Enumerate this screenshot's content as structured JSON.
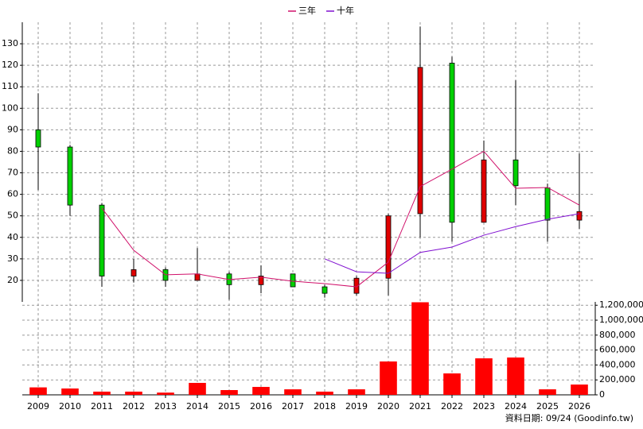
{
  "chart_data": {
    "type": "candlestick",
    "categories": [
      "2009",
      "2010",
      "2011",
      "2012",
      "2013",
      "2014",
      "2015",
      "2016",
      "2017",
      "2018",
      "2019",
      "2020",
      "2021",
      "2022",
      "2023",
      "2024",
      "2025",
      "2026"
    ],
    "open": [
      90,
      82,
      55,
      22,
      25,
      20,
      23,
      18,
      23,
      17,
      14,
      21,
      51,
      121,
      47,
      76,
      63,
      48
    ],
    "high": [
      107,
      83,
      56,
      30,
      26,
      35,
      24,
      27,
      23,
      18,
      22,
      51,
      138,
      124,
      85,
      113,
      65,
      79
    ],
    "low": [
      62,
      50,
      17,
      19,
      17,
      20,
      11,
      14,
      17,
      12,
      13,
      13,
      40,
      38,
      47,
      55,
      38,
      44
    ],
    "close": [
      82,
      55,
      22,
      25,
      20,
      23,
      18,
      22,
      17,
      14,
      21,
      50,
      119,
      47,
      76,
      64,
      48,
      52
    ],
    "up_color": "#e00000",
    "down_color": "#00d000",
    "series": [
      {
        "name": "三年",
        "color": "#d0106a",
        "values": [
          null,
          null,
          53.6,
          34,
          22.6,
          23,
          20.4,
          21.5,
          19.6,
          18.5,
          17,
          28.5,
          63.6,
          71.7,
          80,
          62.8,
          63.2,
          55
        ]
      },
      {
        "name": "十年",
        "color": "#8010d0",
        "values": [
          null,
          null,
          null,
          null,
          null,
          null,
          null,
          null,
          null,
          30,
          24,
          23.3,
          33,
          35.5,
          41,
          45,
          48.4,
          51
        ]
      }
    ],
    "ylim": [
      10,
      140
    ],
    "yticks": [
      20,
      30,
      40,
      50,
      60,
      70,
      80,
      90,
      100,
      110,
      120,
      130
    ],
    "grid": true,
    "volume": {
      "type": "bar",
      "color": "#ff0000",
      "values": [
        100000,
        85000,
        43000,
        43000,
        30000,
        160000,
        64000,
        106000,
        74000,
        43000,
        74000,
        447000,
        1240000,
        287000,
        489000,
        500000,
        74000,
        138000
      ],
      "ylim": [
        0,
        1245000
      ],
      "yticks": [
        0,
        {
          "value": 200000,
          "label": "200,000"
        },
        {
          "value": 400000,
          "label": "400,000"
        },
        {
          "value": 600000,
          "label": "600,000"
        },
        {
          "value": 800000,
          "label": "800,000"
        },
        {
          "value": 1000000,
          "label": "1,000,000"
        },
        {
          "value": 1200000,
          "label": "1,200,000"
        }
      ]
    },
    "footnote": "資料日期: 09/24 (Goodinfo.tw)"
  }
}
